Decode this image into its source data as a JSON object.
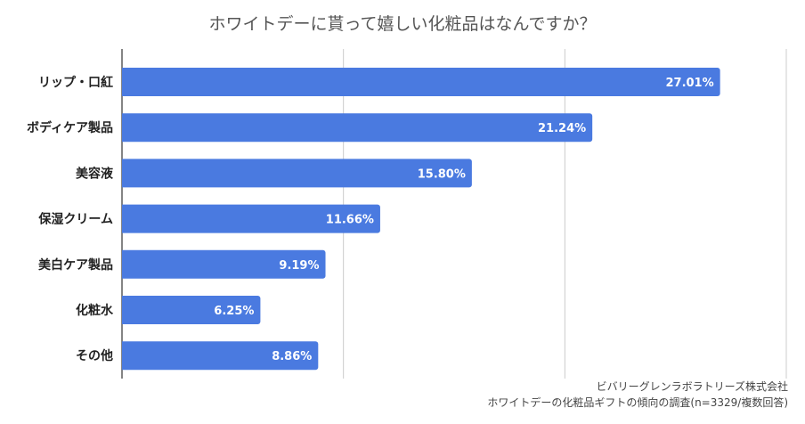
{
  "chart_data": {
    "type": "bar",
    "orientation": "horizontal",
    "title": "ホワイトデーに貰って嬉しい化粧品はなんですか？",
    "categories": [
      "リップ・口紅",
      "ボディケア製品",
      "美容液",
      "保湿クリーム",
      "美白ケア製品",
      "化粧水",
      "その他"
    ],
    "values": [
      27.01,
      21.24,
      15.8,
      11.66,
      9.19,
      6.25,
      8.86
    ],
    "data_labels": [
      "27.01%",
      "21.24%",
      "15.80%",
      "11.66%",
      "9.19%",
      "6.25%",
      "8.86%"
    ],
    "xlim": [
      0,
      30
    ],
    "gridlines": [
      10,
      20,
      30
    ],
    "grid": true,
    "bar_color": "#4a7ae0",
    "xlabel": "",
    "ylabel": ""
  },
  "source": {
    "line1": "ビバリーグレンラボラトリーズ株式会社",
    "line2": "ホワイトデーの化粧品ギフトの傾向の調査(n=3329/複数回答)"
  }
}
